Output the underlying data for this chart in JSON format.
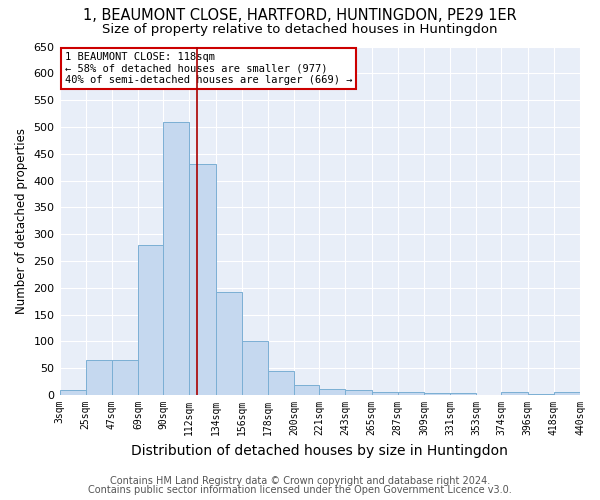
{
  "title": "1, BEAUMONT CLOSE, HARTFORD, HUNTINGDON, PE29 1ER",
  "subtitle": "Size of property relative to detached houses in Huntingdon",
  "xlabel": "Distribution of detached houses by size in Huntingdon",
  "ylabel": "Number of detached properties",
  "footnote1": "Contains HM Land Registry data © Crown copyright and database right 2024.",
  "footnote2": "Contains public sector information licensed under the Open Government Licence v3.0.",
  "bins": [
    3,
    25,
    47,
    69,
    90,
    112,
    134,
    156,
    178,
    200,
    221,
    243,
    265,
    287,
    309,
    331,
    353,
    374,
    396,
    418,
    440
  ],
  "bin_labels": [
    "3sqm",
    "25sqm",
    "47sqm",
    "69sqm",
    "90sqm",
    "112sqm",
    "134sqm",
    "156sqm",
    "178sqm",
    "200sqm",
    "221sqm",
    "243sqm",
    "265sqm",
    "287sqm",
    "309sqm",
    "331sqm",
    "353sqm",
    "374sqm",
    "396sqm",
    "418sqm",
    "440sqm"
  ],
  "values": [
    10,
    65,
    65,
    280,
    510,
    430,
    193,
    100,
    45,
    18,
    12,
    10,
    6,
    5,
    4,
    3,
    1,
    6,
    2,
    6
  ],
  "bar_color": "#c5d8ef",
  "bar_edge_color": "#7bafd4",
  "vline_x": 118,
  "vline_color": "#aa0000",
  "annotation_line1": "1 BEAUMONT CLOSE: 118sqm",
  "annotation_line2": "← 58% of detached houses are smaller (977)",
  "annotation_line3": "40% of semi-detached houses are larger (669) →",
  "annotation_box_color": "white",
  "annotation_box_edge": "#cc0000",
  "ylim": [
    0,
    650
  ],
  "yticks": [
    0,
    50,
    100,
    150,
    200,
    250,
    300,
    350,
    400,
    450,
    500,
    550,
    600,
    650
  ],
  "bg_color": "#e8eef8",
  "grid_color": "white",
  "title_fontsize": 10.5,
  "subtitle_fontsize": 9.5,
  "footnote_fontsize": 7,
  "ylabel_fontsize": 8.5,
  "xlabel_fontsize": 10
}
